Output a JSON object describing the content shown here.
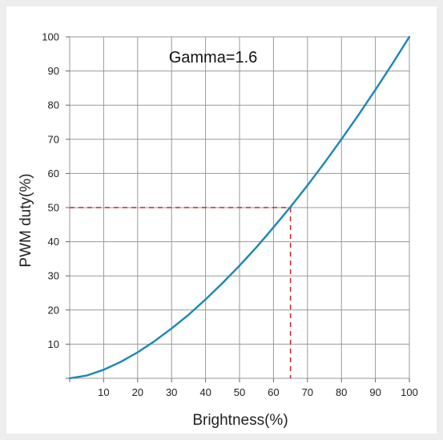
{
  "chart_data": {
    "type": "line",
    "title": "",
    "annotation": "Gamma=1.6",
    "xlabel": "Brightness(%)",
    "ylabel": "PWM duty(%)",
    "xlim": [
      0,
      100
    ],
    "ylim": [
      0,
      100
    ],
    "x_ticks": [
      "10",
      "20",
      "30",
      "40",
      "50",
      "60",
      "70",
      "80",
      "90",
      "100"
    ],
    "y_ticks": [
      "10",
      "20",
      "30",
      "40",
      "50",
      "60",
      "70",
      "80",
      "90",
      "100"
    ],
    "grid": true,
    "legend": "none",
    "series": [
      {
        "color": "#1a87b8",
        "x": [
          0,
          5,
          10,
          15,
          20,
          25,
          30,
          35,
          40,
          45,
          50,
          55,
          60,
          65,
          70,
          75,
          80,
          85,
          90,
          95,
          100
        ],
        "y": [
          0,
          0.8,
          2.5,
          4.8,
          7.6,
          10.9,
          14.6,
          18.6,
          23.1,
          27.9,
          33.0,
          38.4,
          44.2,
          50.2,
          56.5,
          63.1,
          70.0,
          77.1,
          84.5,
          92.1,
          100
        ]
      }
    ],
    "reference": {
      "x": 65,
      "y": 50,
      "color": "#cc2222",
      "style": "dashed"
    }
  }
}
